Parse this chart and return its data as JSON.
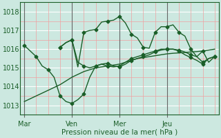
{
  "xlabel": "Pression niveau de la mer( hPa )",
  "bg_color": "#cce8e0",
  "grid_major_color": "#ffffff",
  "grid_minor_color": "#f0a0a0",
  "line_color": "#1a5e28",
  "vline_color": "#666666",
  "ylim": [
    1012.5,
    1018.5
  ],
  "yticks": [
    1013,
    1014,
    1015,
    1016,
    1017,
    1018
  ],
  "xtick_labels": [
    "Mar",
    "Ven",
    "Mer",
    "Jeu"
  ],
  "xtick_positions": [
    0,
    24,
    48,
    72
  ],
  "xmax": 96,
  "line1_x": [
    0,
    3,
    6,
    9,
    12,
    15,
    18,
    21,
    24,
    27,
    30,
    33,
    36,
    39,
    42,
    45,
    48,
    51,
    54,
    57,
    60,
    63,
    66,
    69,
    72,
    75,
    78,
    81,
    84,
    87,
    90,
    93,
    96
  ],
  "line1_y": [
    1016.2,
    1015.9,
    1015.6,
    1015.1,
    1014.9,
    1014.5,
    1013.5,
    1013.2,
    1013.1,
    1013.3,
    1013.6,
    1014.5,
    1015.1,
    1015.2,
    1015.25,
    1015.1,
    1015.05,
    1015.2,
    1015.4,
    1015.5,
    1015.6,
    1015.7,
    1015.85,
    1015.95,
    1016.0,
    1016.0,
    1015.95,
    1015.85,
    1015.7,
    1015.6,
    1015.3,
    1015.5,
    1015.6
  ],
  "line2_x": [
    18,
    21,
    24,
    27,
    30,
    33,
    36,
    39,
    42,
    45,
    48,
    51,
    54,
    57,
    60,
    63,
    66,
    69,
    72,
    75,
    78,
    81,
    84,
    87,
    90,
    93,
    96
  ],
  "line2_y": [
    1016.1,
    1016.35,
    1016.5,
    1015.3,
    1015.1,
    1015.0,
    1015.1,
    1015.2,
    1015.1,
    1015.05,
    1015.1,
    1015.3,
    1015.5,
    1015.6,
    1015.7,
    1015.8,
    1015.9,
    1016.0,
    1016.0,
    1016.0,
    1015.9,
    1015.7,
    1015.55,
    1015.4,
    1015.2,
    1015.5,
    1015.6
  ],
  "line3_x": [
    0,
    3,
    6,
    9,
    12,
    15,
    18,
    21,
    24,
    27,
    30,
    33,
    36,
    39,
    42,
    45,
    48,
    51,
    54,
    57,
    60,
    63,
    66,
    69,
    72,
    75,
    78,
    81,
    84,
    87,
    90,
    93,
    96
  ],
  "line3_y": [
    1013.2,
    1013.35,
    1013.5,
    1013.65,
    1013.8,
    1013.95,
    1014.1,
    1014.3,
    1014.5,
    1014.65,
    1014.8,
    1014.9,
    1015.0,
    1015.05,
    1015.1,
    1015.15,
    1015.2,
    1015.3,
    1015.4,
    1015.5,
    1015.55,
    1015.6,
    1015.65,
    1015.7,
    1015.75,
    1015.78,
    1015.8,
    1015.82,
    1015.85,
    1015.87,
    1015.9,
    1015.95,
    1016.0
  ],
  "line4_x": [
    18,
    21,
    24,
    27,
    30,
    33,
    36,
    39,
    42,
    45,
    48,
    51,
    54,
    57,
    60,
    63,
    66,
    69,
    72,
    75,
    78,
    81,
    84,
    87,
    90,
    93,
    96
  ],
  "line4_y": [
    1016.1,
    1016.35,
    1016.5,
    1015.05,
    1016.9,
    1017.0,
    1017.05,
    1017.45,
    1017.5,
    1017.55,
    1017.75,
    1017.4,
    1016.8,
    1016.6,
    1016.1,
    1016.05,
    1016.9,
    1017.2,
    1017.2,
    1017.3,
    1016.9,
    1016.7,
    1016.0,
    1015.6,
    1015.9,
    1015.3,
    1015.6
  ],
  "marker_size": 2.5,
  "linewidth": 1.0
}
